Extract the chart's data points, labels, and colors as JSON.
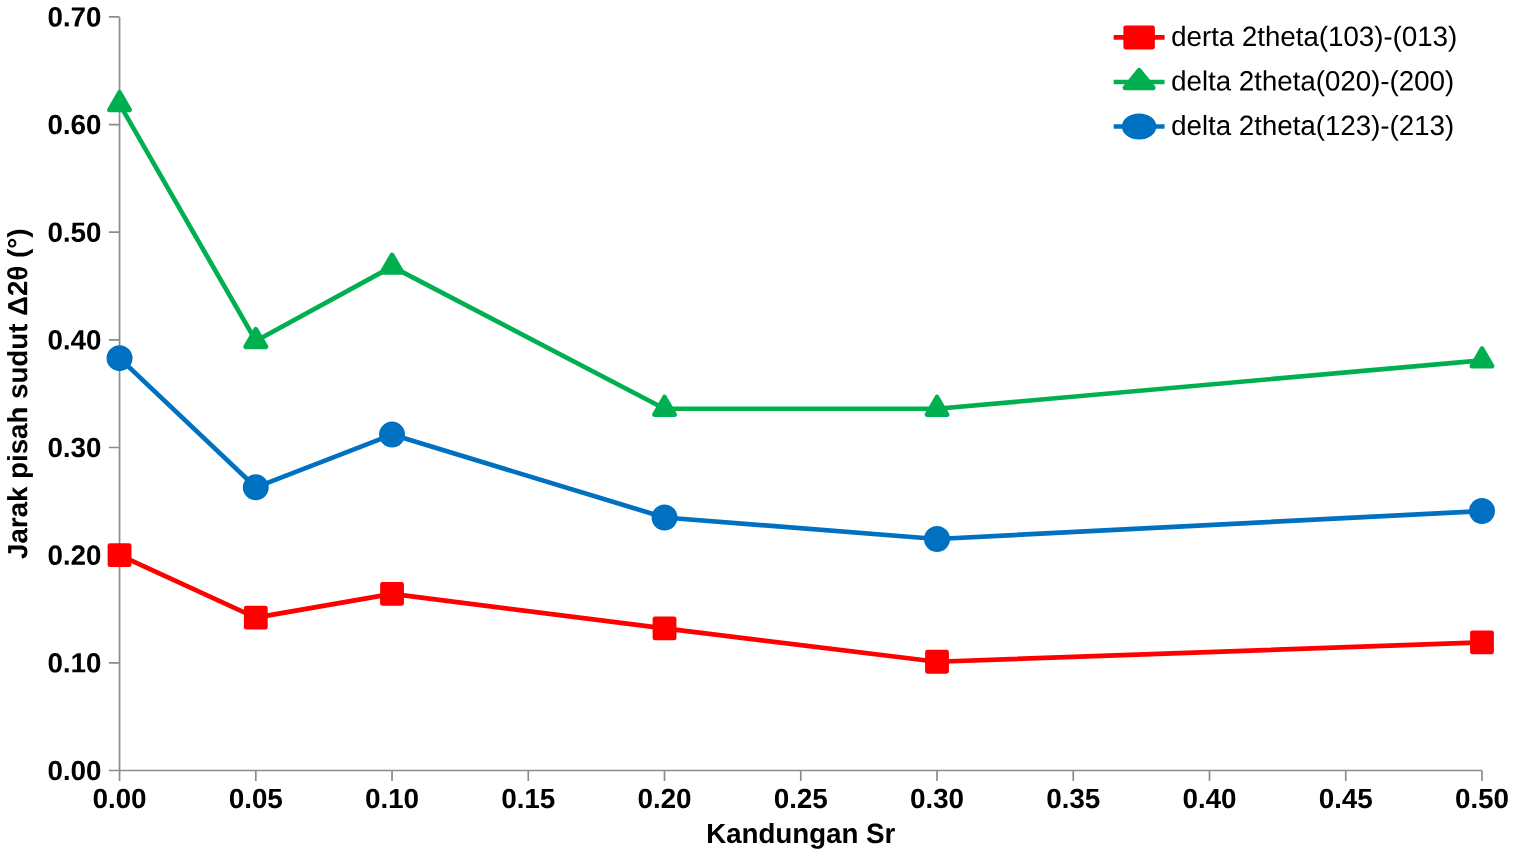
{
  "chart_data": {
    "type": "line",
    "xlabel": "Kandungan Sr",
    "ylabel": "Jarak pisah sudut Δ2θ (°)",
    "x": [
      0.0,
      0.05,
      0.1,
      0.2,
      0.3,
      0.5
    ],
    "series": [
      {
        "name": "derta 2theta(103)-(013)",
        "color": "#ff0000",
        "marker": "square",
        "values": [
          0.2,
          0.142,
          0.164,
          0.132,
          0.101,
          0.119
        ]
      },
      {
        "name": "delta 2theta(020)-(200)",
        "color": "#00b050",
        "marker": "triangle",
        "values": [
          0.619,
          0.399,
          0.468,
          0.336,
          0.336,
          0.381
        ]
      },
      {
        "name": "delta 2theta(123)-(213)",
        "color": "#0070c0",
        "marker": "circle",
        "values": [
          0.383,
          0.263,
          0.312,
          0.235,
          0.215,
          0.241
        ]
      }
    ],
    "xlim": [
      0,
      0.5
    ],
    "ylim": [
      0,
      0.7
    ],
    "xticks": [
      {
        "value": 0,
        "label": "0.00"
      },
      {
        "value": 0.05,
        "label": "0.05"
      },
      {
        "value": 0.1,
        "label": "0.10"
      },
      {
        "value": 0.15,
        "label": "0.15"
      },
      {
        "value": 0.2,
        "label": "0.20"
      },
      {
        "value": 0.25,
        "label": "0.25"
      },
      {
        "value": 0.3,
        "label": "0.30"
      },
      {
        "value": 0.35,
        "label": "0.35"
      },
      {
        "value": 0.4,
        "label": "0.40"
      },
      {
        "value": 0.45,
        "label": "0.45"
      },
      {
        "value": 0.5,
        "label": "0.50"
      }
    ],
    "yticks": [
      {
        "value": 0,
        "label": "0.00"
      },
      {
        "value": 0.1,
        "label": "0.10"
      },
      {
        "value": 0.2,
        "label": "0.20"
      },
      {
        "value": 0.3,
        "label": "0.30"
      },
      {
        "value": 0.4,
        "label": "0.40"
      },
      {
        "value": 0.5,
        "label": "0.50"
      },
      {
        "value": 0.6,
        "label": "0.60"
      },
      {
        "value": 0.7,
        "label": "0.70"
      }
    ],
    "legend": "top right",
    "grid": false,
    "line_style": "solid"
  }
}
